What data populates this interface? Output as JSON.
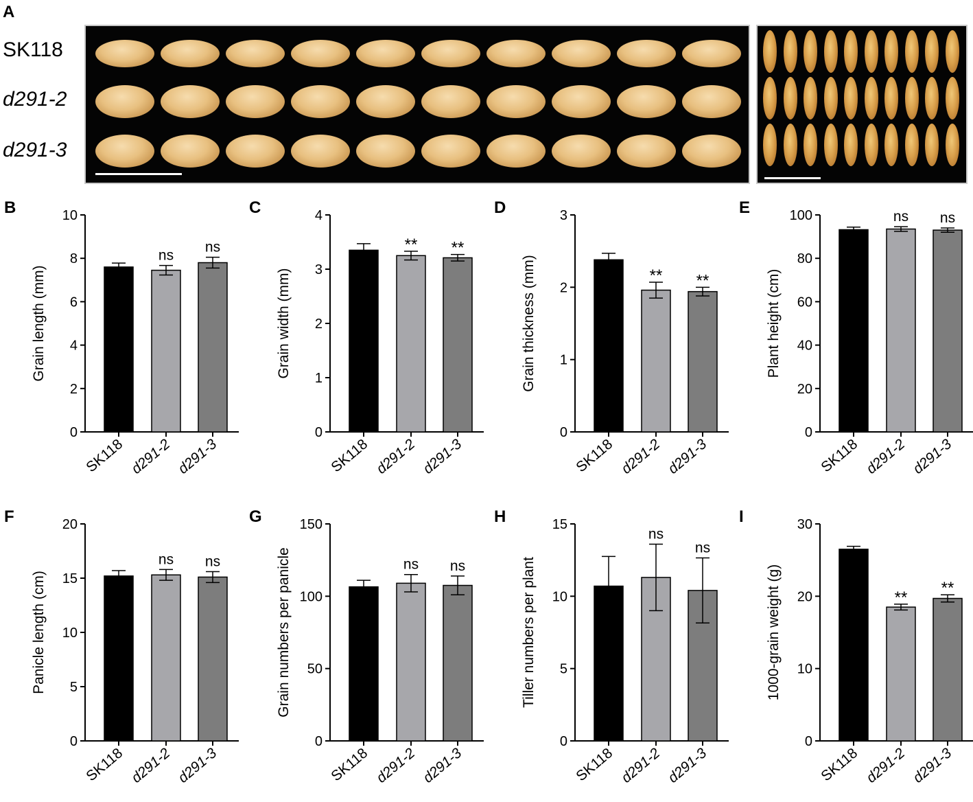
{
  "panel_a": {
    "letter": "A",
    "row_labels": [
      {
        "text": "SK118",
        "italic": false
      },
      {
        "text": "d291-2",
        "italic": true
      },
      {
        "text": "d291-3",
        "italic": true
      }
    ]
  },
  "colors": {
    "bars": [
      "#000000",
      "#a7a7ab",
      "#7d7d7d"
    ]
  },
  "chart_data": [
    {
      "panel": "B",
      "type": "bar",
      "categories": [
        "SK118",
        "d291-2",
        "d291-3"
      ],
      "values": [
        7.6,
        7.45,
        7.8
      ],
      "errors": [
        0.18,
        0.22,
        0.25
      ],
      "significance": [
        "",
        "ns",
        "ns"
      ],
      "ylabel": "Grain length (mm)",
      "ylim": [
        0,
        10
      ],
      "yticks": [
        0,
        2,
        4,
        6,
        8,
        10
      ],
      "ytick_labels": [
        "0",
        "2",
        "4",
        "6",
        "8",
        "10"
      ]
    },
    {
      "panel": "C",
      "type": "bar",
      "categories": [
        "SK118",
        "d291-2",
        "d291-3"
      ],
      "values": [
        3.35,
        3.25,
        3.21
      ],
      "errors": [
        0.12,
        0.08,
        0.06
      ],
      "significance": [
        "",
        "**",
        "**"
      ],
      "ylabel": "Grain width (mm)",
      "ylim": [
        0,
        4
      ],
      "yticks": [
        0,
        1,
        2,
        3,
        4
      ],
      "ytick_labels": [
        "0",
        "1",
        "2",
        "3",
        "4"
      ]
    },
    {
      "panel": "D",
      "type": "bar",
      "categories": [
        "SK118",
        "d291-2",
        "d291-3"
      ],
      "values": [
        2.38,
        1.96,
        1.94
      ],
      "errors": [
        0.09,
        0.11,
        0.06
      ],
      "significance": [
        "",
        "**",
        "**"
      ],
      "ylabel": "Grain thickness (mm)",
      "ylim": [
        0,
        3
      ],
      "yticks": [
        0,
        1,
        2,
        3
      ],
      "ytick_labels": [
        "0",
        "1",
        "2",
        "3"
      ]
    },
    {
      "panel": "E",
      "type": "bar",
      "categories": [
        "SK118",
        "d291-2",
        "d291-3"
      ],
      "values": [
        93.2,
        93.5,
        93.0
      ],
      "errors": [
        1.2,
        1.1,
        1.0
      ],
      "significance": [
        "",
        "ns",
        "ns"
      ],
      "ylabel": "Plant height (cm)",
      "ylim": [
        0,
        100
      ],
      "yticks": [
        0,
        20,
        40,
        60,
        80,
        100
      ],
      "ytick_labels": [
        "0",
        "20",
        "40",
        "60",
        "80",
        "100"
      ]
    },
    {
      "panel": "F",
      "type": "bar",
      "categories": [
        "SK118",
        "d291-2",
        "d291-3"
      ],
      "values": [
        15.2,
        15.3,
        15.1
      ],
      "errors": [
        0.5,
        0.5,
        0.5
      ],
      "significance": [
        "",
        "ns",
        "ns"
      ],
      "ylabel": "Panicle length (cm)",
      "ylim": [
        0,
        20
      ],
      "yticks": [
        0,
        5,
        10,
        15,
        20
      ],
      "ytick_labels": [
        "0",
        "5",
        "10",
        "15",
        "20"
      ]
    },
    {
      "panel": "G",
      "type": "bar",
      "categories": [
        "SK118",
        "d291-2",
        "d291-3"
      ],
      "values": [
        106.5,
        109,
        107.5
      ],
      "errors": [
        4.5,
        6,
        6.5
      ],
      "significance": [
        "",
        "ns",
        "ns"
      ],
      "ylabel": "Grain numbers per panicle",
      "ylim": [
        0,
        150
      ],
      "yticks": [
        0,
        50,
        100,
        150
      ],
      "ytick_labels": [
        "0",
        "50",
        "100",
        "150"
      ]
    },
    {
      "panel": "H",
      "type": "bar",
      "categories": [
        "SK118",
        "d291-2",
        "d291-3"
      ],
      "values": [
        10.7,
        11.3,
        10.4
      ],
      "errors": [
        2.05,
        2.3,
        2.25
      ],
      "significance": [
        "",
        "ns",
        "ns"
      ],
      "ylabel": "Tiller numbers per plant",
      "ylim": [
        0,
        15
      ],
      "yticks": [
        0,
        5,
        10,
        15
      ],
      "ytick_labels": [
        "0",
        "5",
        "10",
        "15"
      ]
    },
    {
      "panel": "I",
      "type": "bar",
      "categories": [
        "SK118",
        "d291-2",
        "d291-3"
      ],
      "values": [
        26.5,
        18.5,
        19.7
      ],
      "errors": [
        0.4,
        0.4,
        0.5
      ],
      "significance": [
        "",
        "**",
        "**"
      ],
      "ylabel": "1000-grain weight (g)",
      "ylim": [
        0,
        30
      ],
      "yticks": [
        0,
        10,
        20,
        30
      ],
      "ytick_labels": [
        "0",
        "10",
        "20",
        "30"
      ]
    }
  ]
}
